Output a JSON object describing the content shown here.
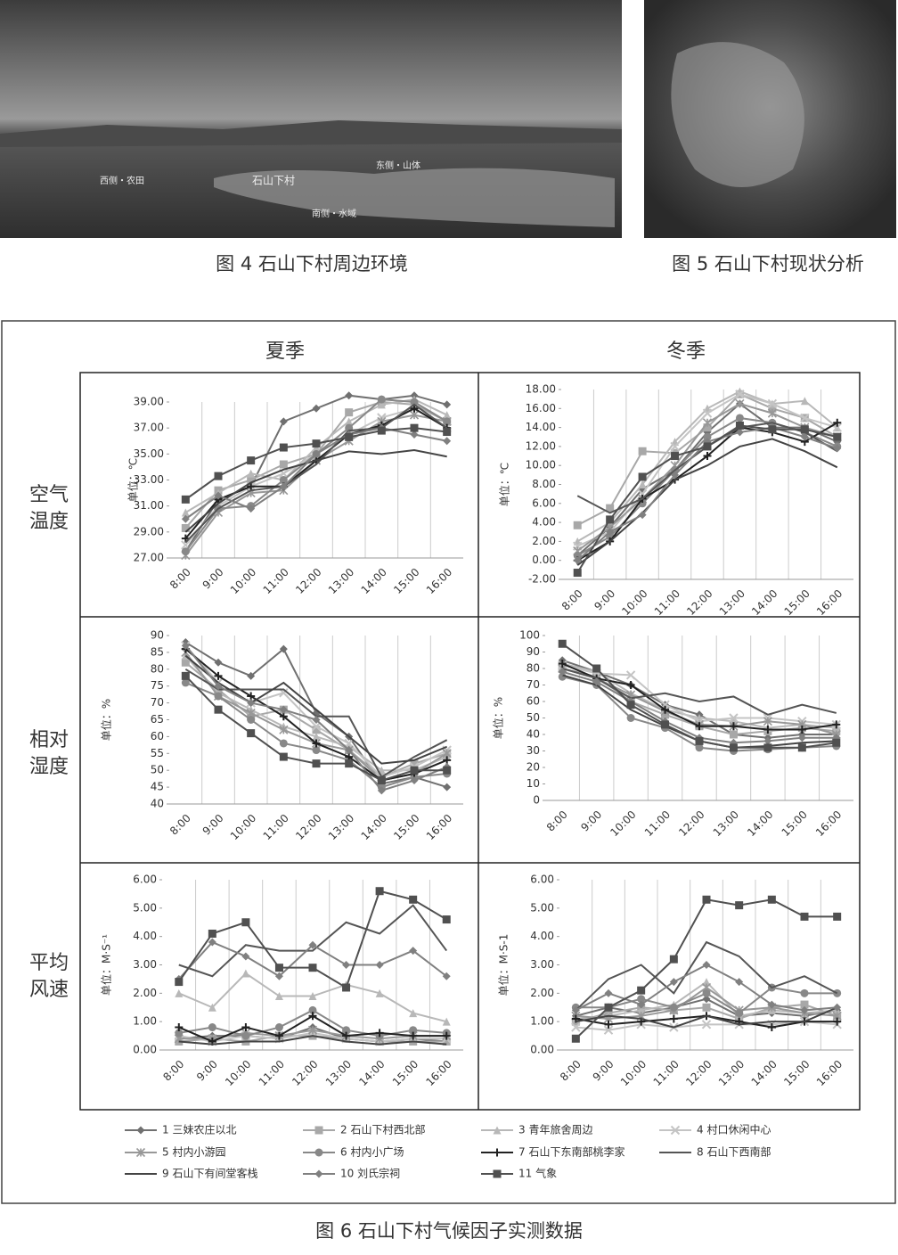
{
  "photos": {
    "left_labels": [
      "西侧・农田",
      "石山下村",
      "东侧・山体",
      "南侧・水域"
    ],
    "left_caption": "图 4 石山下村周边环境",
    "right_caption": "图 5 石山下村现状分析"
  },
  "figure": {
    "column_headers": [
      "夏季",
      "冬季"
    ],
    "row_labels": [
      [
        "空气",
        "温度"
      ],
      [
        "相对",
        "湿度"
      ],
      [
        "平均",
        "风速"
      ]
    ],
    "caption": "图 6 石山下村气候因子实测数据"
  },
  "legend": [
    {
      "name": "1 三妹农庄以北",
      "color": "#707070",
      "marker": "diamond"
    },
    {
      "name": "2 石山下村西北部",
      "color": "#a8a8a8",
      "marker": "square"
    },
    {
      "name": "3 青年旅舍周边",
      "color": "#b8b8b8",
      "marker": "triangle"
    },
    {
      "name": "4 村口休闲中心",
      "color": "#c4c4c4",
      "marker": "x"
    },
    {
      "name": "5 村内小游园",
      "color": "#989898",
      "marker": "asterisk"
    },
    {
      "name": "6 村内小广场",
      "color": "#888888",
      "marker": "circle"
    },
    {
      "name": "7 石山下东南部桃李家",
      "color": "#222222",
      "marker": "plus"
    },
    {
      "name": "8 石山下西南部",
      "color": "#555555",
      "marker": "none"
    },
    {
      "name": "9 石山下有间堂客栈",
      "color": "#444444",
      "marker": "none"
    },
    {
      "name": "10 刘氏宗祠",
      "color": "#808080",
      "marker": "diamond"
    },
    {
      "name": "11 气象",
      "color": "#505050",
      "marker": "square"
    }
  ],
  "chart_data": [
    {
      "type": "line",
      "y_label": "单位：℃",
      "categories": [
        "8:00",
        "9:00",
        "10:00",
        "11:00",
        "12:00",
        "13:00",
        "14:00",
        "15:00",
        "16:00"
      ],
      "ylim": [
        27,
        39
      ],
      "yticks": [
        {
          "value": 27,
          "label": "27.00"
        },
        {
          "value": 29,
          "label": "29.00"
        },
        {
          "value": 31,
          "label": "31.00"
        },
        {
          "value": 33,
          "label": "33.00"
        },
        {
          "value": 35,
          "label": "35.00"
        },
        {
          "value": 37,
          "label": "37.00"
        },
        {
          "value": 39,
          "label": "39.00"
        }
      ],
      "series": [
        {
          "values": [
            27.5,
            31.5,
            32.5,
            37.5,
            38.5,
            39.5,
            39.2,
            39.5,
            38.8
          ]
        },
        {
          "values": [
            29.3,
            32.2,
            33.0,
            34.2,
            35.0,
            38.2,
            39.0,
            38.8,
            37.5
          ]
        },
        {
          "values": [
            30.5,
            32.0,
            33.5,
            33.0,
            35.5,
            37.5,
            38.8,
            39.2,
            38.0
          ]
        },
        {
          "values": [
            28.0,
            31.0,
            32.5,
            33.5,
            35.0,
            36.5,
            37.8,
            38.5,
            37.0
          ]
        },
        {
          "values": [
            27.2,
            30.5,
            32.0,
            32.2,
            34.5,
            36.0,
            37.5,
            38.0,
            37.5
          ]
        },
        {
          "values": [
            27.5,
            30.8,
            31.0,
            33.0,
            35.0,
            37.0,
            39.2,
            39.0,
            37.5
          ]
        },
        {
          "values": [
            28.5,
            31.5,
            32.5,
            32.5,
            34.5,
            36.5,
            37.2,
            38.5,
            37.0
          ]
        },
        {
          "values": [
            28.2,
            30.8,
            32.2,
            32.5,
            34.2,
            36.8,
            37.0,
            38.8,
            37.0
          ]
        },
        {
          "values": [
            29.0,
            31.2,
            32.8,
            33.8,
            34.5,
            35.2,
            35.0,
            35.3,
            34.8
          ]
        },
        {
          "values": [
            30.0,
            31.8,
            30.8,
            32.5,
            35.0,
            36.5,
            37.0,
            36.5,
            36.0
          ]
        },
        {
          "values": [
            31.5,
            33.3,
            34.5,
            35.5,
            35.8,
            36.3,
            36.8,
            37.0,
            36.7
          ]
        }
      ]
    },
    {
      "type": "line",
      "y_label": "单位：℃",
      "categories": [
        "8:00",
        "9:00",
        "10:00",
        "11:00",
        "12:00",
        "13:00",
        "14:00",
        "15:00",
        "16:00"
      ],
      "ylim": [
        -2,
        18
      ],
      "yticks": [
        {
          "value": -2,
          "label": "-2.00"
        },
        {
          "value": 0,
          "label": "0.00"
        },
        {
          "value": 2,
          "label": "2.00"
        },
        {
          "value": 4,
          "label": "4.00"
        },
        {
          "value": 6,
          "label": "6.00"
        },
        {
          "value": 8,
          "label": "8.00"
        },
        {
          "value": 10,
          "label": "10.00"
        },
        {
          "value": 12,
          "label": "12.00"
        },
        {
          "value": 14,
          "label": "14.00"
        },
        {
          "value": 16,
          "label": "16.00"
        },
        {
          "value": 18,
          "label": "18.00"
        }
      ],
      "series": [
        {
          "values": [
            0.5,
            3.5,
            7.5,
            9.5,
            13.5,
            16.5,
            14.0,
            14.0,
            12.5
          ]
        },
        {
          "values": [
            3.7,
            5.5,
            11.5,
            11.3,
            14.0,
            17.5,
            16.0,
            15.0,
            13.0
          ]
        },
        {
          "values": [
            2.0,
            4.0,
            8.0,
            12.5,
            16.0,
            17.8,
            16.5,
            16.8,
            14.0
          ]
        },
        {
          "values": [
            1.5,
            3.0,
            7.0,
            12.0,
            15.5,
            17.5,
            16.5,
            15.0,
            14.0
          ]
        },
        {
          "values": [
            1.0,
            3.5,
            6.5,
            10.0,
            14.5,
            16.5,
            15.5,
            14.0,
            13.0
          ]
        },
        {
          "values": [
            0.5,
            2.5,
            6.0,
            9.5,
            13.0,
            15.0,
            14.5,
            13.5,
            12.0
          ]
        },
        {
          "values": [
            0.0,
            2.0,
            6.5,
            8.5,
            11.0,
            14.0,
            13.5,
            12.5,
            14.5
          ]
        },
        {
          "values": [
            6.8,
            5.0,
            6.5,
            9.5,
            12.0,
            14.0,
            14.5,
            13.5,
            11.5
          ]
        },
        {
          "values": [
            -0.5,
            2.0,
            5.0,
            8.5,
            10.0,
            12.0,
            12.8,
            11.5,
            9.8
          ]
        },
        {
          "values": [
            0.0,
            3.0,
            4.8,
            9.0,
            12.5,
            13.5,
            14.0,
            13.0,
            11.8
          ]
        },
        {
          "values": [
            -1.3,
            4.3,
            8.8,
            11.0,
            12.0,
            14.2,
            13.8,
            13.8,
            13.0
          ]
        }
      ]
    },
    {
      "type": "line",
      "y_label": "单位：%",
      "categories": [
        "8:00",
        "9:00",
        "10:00",
        "11:00",
        "12:00",
        "13:00",
        "14:00",
        "15:00",
        "16:00"
      ],
      "ylim": [
        40,
        90
      ],
      "yticks": [
        40,
        45,
        50,
        55,
        60,
        65,
        70,
        75,
        80,
        85,
        90
      ],
      "series": [
        {
          "values": [
            88,
            82,
            78,
            86,
            67,
            60,
            46,
            48,
            45
          ]
        },
        {
          "values": [
            82,
            74,
            66,
            68,
            62,
            56,
            48,
            52,
            55
          ]
        },
        {
          "values": [
            84,
            73,
            68,
            63,
            60,
            57,
            50,
            50,
            54
          ]
        },
        {
          "values": [
            87,
            76,
            70,
            73,
            63,
            58,
            48,
            51,
            56
          ]
        },
        {
          "values": [
            85,
            72,
            67,
            62,
            58,
            56,
            47,
            49,
            55
          ]
        },
        {
          "values": [
            76,
            72,
            65,
            58,
            56,
            53,
            45,
            48,
            49
          ]
        },
        {
          "values": [
            86,
            78,
            72,
            66,
            58,
            54,
            47,
            49,
            53
          ]
        },
        {
          "values": [
            80,
            74,
            74,
            74,
            66,
            66,
            48,
            54,
            59
          ]
        },
        {
          "values": [
            84,
            76,
            70,
            76,
            68,
            60,
            52,
            53,
            57
          ]
        },
        {
          "values": [
            87,
            75,
            70,
            68,
            65,
            56,
            44,
            47,
            51
          ]
        },
        {
          "values": [
            78,
            68,
            61,
            54,
            52,
            52,
            47,
            50,
            50
          ]
        }
      ]
    },
    {
      "type": "line",
      "y_label": "单位：%",
      "categories": [
        "8:00",
        "9:00",
        "10:00",
        "11:00",
        "12:00",
        "13:00",
        "14:00",
        "15:00",
        "16:00"
      ],
      "ylim": [
        0,
        100
      ],
      "yticks": [
        0,
        10,
        20,
        30,
        40,
        50,
        60,
        70,
        80,
        90,
        100
      ],
      "series": [
        {
          "values": [
            85,
            78,
            70,
            58,
            52,
            40,
            38,
            40,
            40
          ]
        },
        {
          "values": [
            80,
            75,
            60,
            52,
            45,
            40,
            42,
            44,
            42
          ]
        },
        {
          "values": [
            83,
            78,
            65,
            55,
            50,
            48,
            44,
            46,
            44
          ]
        },
        {
          "values": [
            82,
            77,
            76,
            58,
            48,
            50,
            50,
            48,
            46
          ]
        },
        {
          "values": [
            80,
            74,
            64,
            54,
            46,
            45,
            48,
            46,
            40
          ]
        },
        {
          "values": [
            75,
            70,
            50,
            44,
            32,
            30,
            31,
            32,
            33
          ]
        },
        {
          "values": [
            83,
            74,
            70,
            55,
            45,
            45,
            43,
            43,
            46
          ]
        },
        {
          "values": [
            80,
            74,
            62,
            65,
            60,
            63,
            52,
            58,
            53
          ]
        },
        {
          "values": [
            76,
            70,
            55,
            45,
            36,
            32,
            33,
            35,
            36
          ]
        },
        {
          "values": [
            78,
            72,
            60,
            48,
            38,
            35,
            36,
            38,
            38
          ]
        },
        {
          "values": [
            95,
            80,
            58,
            46,
            36,
            32,
            32,
            32,
            35
          ]
        }
      ]
    },
    {
      "type": "line",
      "y_label": "单位：M·S⁻¹",
      "categories": [
        "8:00",
        "9:00",
        "10:00",
        "11:00",
        "12:00",
        "13:00",
        "14:00",
        "15:00",
        "16:00"
      ],
      "ylim": [
        0,
        6
      ],
      "yticks": [
        {
          "value": 0,
          "label": "0.00"
        },
        {
          "value": 1,
          "label": "1.00"
        },
        {
          "value": 2,
          "label": "2.00"
        },
        {
          "value": 3,
          "label": "3.00"
        },
        {
          "value": 4,
          "label": "4.00"
        },
        {
          "value": 5,
          "label": "5.00"
        },
        {
          "value": 6,
          "label": "6.00"
        }
      ],
      "series": [
        {
          "values": [
            0.4,
            0.5,
            0.5,
            0.4,
            0.8,
            0.4,
            0.3,
            0.4,
            0.3
          ]
        },
        {
          "values": [
            0.3,
            0.4,
            0.3,
            0.5,
            0.5,
            0.4,
            0.3,
            0.3,
            0.3
          ]
        },
        {
          "values": [
            2.0,
            1.5,
            2.7,
            1.9,
            1.9,
            2.3,
            2.0,
            1.3,
            1.0
          ]
        },
        {
          "values": [
            0.5,
            0.3,
            0.5,
            0.4,
            0.6,
            0.4,
            0.3,
            0.4,
            0.4
          ]
        },
        {
          "values": [
            0.4,
            0.4,
            0.6,
            0.5,
            0.7,
            0.5,
            0.4,
            0.5,
            0.5
          ]
        },
        {
          "values": [
            0.6,
            0.8,
            0.5,
            0.8,
            1.4,
            0.7,
            0.5,
            0.7,
            0.6
          ]
        },
        {
          "values": [
            0.8,
            0.3,
            0.8,
            0.5,
            1.2,
            0.5,
            0.6,
            0.5,
            0.5
          ]
        },
        {
          "values": [
            3.0,
            2.6,
            3.7,
            3.5,
            3.5,
            4.5,
            4.1,
            5.1,
            3.5
          ]
        },
        {
          "values": [
            0.3,
            0.2,
            0.3,
            0.3,
            0.5,
            0.3,
            0.2,
            0.3,
            0.2
          ]
        },
        {
          "values": [
            2.5,
            3.8,
            3.3,
            2.6,
            3.7,
            3.0,
            3.0,
            3.5,
            2.6
          ]
        },
        {
          "values": [
            2.4,
            4.1,
            4.5,
            2.9,
            2.9,
            2.2,
            5.6,
            5.3,
            4.6
          ]
        }
      ]
    },
    {
      "type": "line",
      "y_label": "单位：M·S-1",
      "categories": [
        "8:00",
        "9:00",
        "10:00",
        "11:00",
        "12:00",
        "13:00",
        "14:00",
        "15:00",
        "16:00"
      ],
      "ylim": [
        0,
        6
      ],
      "yticks": [
        {
          "value": 0,
          "label": "0.00"
        },
        {
          "value": 1,
          "label": "1.00"
        },
        {
          "value": 2,
          "label": "2.00"
        },
        {
          "value": 3,
          "label": "3.00"
        },
        {
          "value": 4,
          "label": "4.00"
        },
        {
          "value": 5,
          "label": "5.00"
        },
        {
          "value": 6,
          "label": "6.00"
        }
      ],
      "series": [
        {
          "values": [
            1.2,
            1.5,
            1.3,
            1.5,
            1.8,
            1.2,
            1.3,
            1.2,
            1.4
          ]
        },
        {
          "values": [
            1.0,
            1.3,
            1.5,
            1.4,
            1.5,
            1.1,
            1.5,
            1.6,
            1.2
          ]
        },
        {
          "values": [
            1.1,
            1.2,
            1.4,
            1.6,
            2.4,
            1.2,
            1.4,
            1.3,
            1.4
          ]
        },
        {
          "values": [
            0.8,
            0.7,
            0.9,
            0.8,
            0.9,
            0.9,
            0.9,
            1.0,
            0.9
          ]
        },
        {
          "values": [
            1.2,
            1.1,
            1.2,
            1.4,
            2.2,
            1.4,
            1.5,
            1.3,
            1.2
          ]
        },
        {
          "values": [
            1.5,
            1.5,
            1.8,
            1.5,
            2.0,
            1.3,
            2.2,
            2.0,
            2.0
          ]
        },
        {
          "values": [
            1.1,
            0.9,
            1.0,
            1.1,
            1.2,
            1.0,
            0.8,
            1.0,
            1.0
          ]
        },
        {
          "values": [
            1.4,
            2.5,
            3.0,
            2.0,
            3.8,
            3.3,
            2.2,
            2.6,
            2.0
          ]
        },
        {
          "values": [
            1.0,
            1.2,
            1.1,
            0.8,
            1.2,
            0.9,
            1.0,
            1.0,
            1.5
          ]
        },
        {
          "values": [
            1.4,
            2.0,
            1.6,
            2.4,
            3.0,
            2.4,
            1.6,
            1.4,
            1.5
          ]
        },
        {
          "values": [
            0.4,
            1.5,
            2.1,
            3.2,
            5.3,
            5.1,
            5.3,
            4.7,
            4.7
          ]
        }
      ]
    }
  ]
}
